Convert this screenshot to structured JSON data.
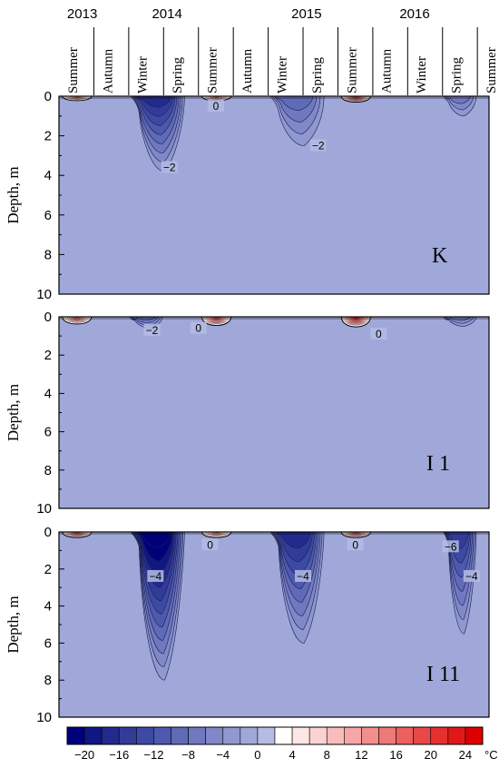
{
  "years": [
    {
      "label": "2013",
      "x_month": 2.0
    },
    {
      "label": "2014",
      "x_month": 9.3
    },
    {
      "label": "2015",
      "x_month": 21.3
    },
    {
      "label": "2016",
      "x_month": 30.6
    }
  ],
  "seasons": [
    "Summer",
    "Autumn",
    "Winter",
    "Spring",
    "Summer",
    "Autumn",
    "Winter",
    "Spring",
    "Summer",
    "Autumn",
    "Winter",
    "Spring",
    "Summer"
  ],
  "y_axis_label": "Depth, m",
  "y_ticks": [
    "0",
    "2",
    "4",
    "6",
    "8",
    "10"
  ],
  "colorbar": {
    "labels": [
      "−20",
      "−16",
      "−12",
      "−8",
      "−4",
      "0",
      "4",
      "8",
      "12",
      "16",
      "20",
      "24"
    ],
    "unit": "°C",
    "levels": [
      -22,
      -20,
      -18,
      -16,
      -14,
      -12,
      -10,
      -8,
      -6,
      -4,
      -2,
      0,
      2,
      4,
      6,
      8,
      10,
      12,
      14,
      16,
      18,
      20,
      22,
      24
    ],
    "colors": [
      "#00007a",
      "#0f1782",
      "#222a8e",
      "#333b98",
      "#3c4aa3",
      "#4d59ad",
      "#5f6ab8",
      "#7078c0",
      "#8088c8",
      "#9098d0",
      "#a0a8da",
      "#b4bce4",
      "#ffffff",
      "#fde6e6",
      "#fbd2d2",
      "#f8bcbc",
      "#f5a6a6",
      "#f28e8e",
      "#ef7878",
      "#ec6060",
      "#e84848",
      "#e53030",
      "#e21818",
      "#dd0000"
    ]
  },
  "chart_data": [
    {
      "type": "heatmap",
      "title": "",
      "panel": "K",
      "ylabel": "Depth, m",
      "ylim": [
        10,
        0
      ],
      "x_axis": "seasons, Summer 2013 – Summer 2016",
      "background_temperature_c": -1,
      "features": [
        {
          "kind": "cold_tongue",
          "season": "Winter–Spring 2014",
          "min_temp_c": -14,
          "max_depth_m": 3.8
        },
        {
          "kind": "cold_tongue",
          "season": "Winter–Spring 2015",
          "min_temp_c": -6,
          "max_depth_m": 2.5
        },
        {
          "kind": "cold_tongue",
          "season": "Spring 2016",
          "min_temp_c": -4,
          "max_depth_m": 1.0
        },
        {
          "kind": "warm_surface",
          "season": "Summer 2013",
          "max_temp_c": 12,
          "max_depth_m": 0.3
        },
        {
          "kind": "warm_surface",
          "season": "Summer 2014",
          "max_temp_c": 12,
          "max_depth_m": 0.3
        },
        {
          "kind": "warm_surface",
          "season": "Summer 2015",
          "max_temp_c": 20,
          "max_depth_m": 0.4
        }
      ],
      "contour_labels": [
        {
          "text": "0",
          "x_month": 13.5,
          "depth": 0.5
        },
        {
          "text": "−2",
          "x_month": 9.5,
          "depth": 3.6
        },
        {
          "text": "−2",
          "x_month": 22.3,
          "depth": 2.5
        }
      ]
    },
    {
      "type": "heatmap",
      "title": "",
      "panel": "I 1",
      "ylabel": "Depth, m",
      "ylim": [
        10,
        0
      ],
      "background_temperature_c": -1,
      "features": [
        {
          "kind": "cold_tongue",
          "season": "Winter 2014",
          "min_temp_c": -6,
          "max_depth_m": 0.6
        },
        {
          "kind": "cold_tongue",
          "season": "Spring 2016",
          "min_temp_c": -4,
          "max_depth_m": 0.5
        },
        {
          "kind": "warm_surface",
          "season": "Summer 2013",
          "max_temp_c": 16,
          "max_depth_m": 0.5
        },
        {
          "kind": "warm_surface",
          "season": "Summer 2014",
          "max_temp_c": 20,
          "max_depth_m": 0.6
        },
        {
          "kind": "warm_surface",
          "season": "Summer 2015",
          "max_temp_c": 24,
          "max_depth_m": 0.7
        }
      ],
      "contour_labels": [
        {
          "text": "−2",
          "x_month": 8.0,
          "depth": 0.7
        },
        {
          "text": "0",
          "x_month": 12.0,
          "depth": 0.6
        },
        {
          "text": "0",
          "x_month": 27.5,
          "depth": 0.9
        }
      ]
    },
    {
      "type": "heatmap",
      "title": "",
      "panel": "I 11",
      "ylabel": "Depth, m",
      "ylim": [
        10,
        0
      ],
      "background_temperature_c": -1,
      "features": [
        {
          "kind": "cold_tongue",
          "season": "Winter–Spring 2014",
          "min_temp_c": -20,
          "max_depth_m": 8.0
        },
        {
          "kind": "cold_tongue",
          "season": "Winter–Spring 2015",
          "min_temp_c": -14,
          "max_depth_m": 6.0
        },
        {
          "kind": "cold_tongue",
          "season": "Spring 2016",
          "min_temp_c": -12,
          "max_depth_m": 5.5
        },
        {
          "kind": "warm_surface",
          "season": "Summer 2013",
          "max_temp_c": 16,
          "max_depth_m": 0.4
        },
        {
          "kind": "warm_surface",
          "season": "Summer 2014",
          "max_temp_c": 12,
          "max_depth_m": 0.4
        },
        {
          "kind": "warm_surface",
          "season": "Summer 2015",
          "max_temp_c": 16,
          "max_depth_m": 0.4
        }
      ],
      "contour_labels": [
        {
          "text": "0",
          "x_month": 13.0,
          "depth": 0.7
        },
        {
          "text": "0",
          "x_month": 25.5,
          "depth": 0.7
        },
        {
          "text": "−4",
          "x_month": 8.3,
          "depth": 2.4
        },
        {
          "text": "−4",
          "x_month": 21.0,
          "depth": 2.4
        },
        {
          "text": "−6",
          "x_month": 33.7,
          "depth": 0.8
        },
        {
          "text": "−4",
          "x_month": 35.5,
          "depth": 2.4
        }
      ]
    }
  ]
}
